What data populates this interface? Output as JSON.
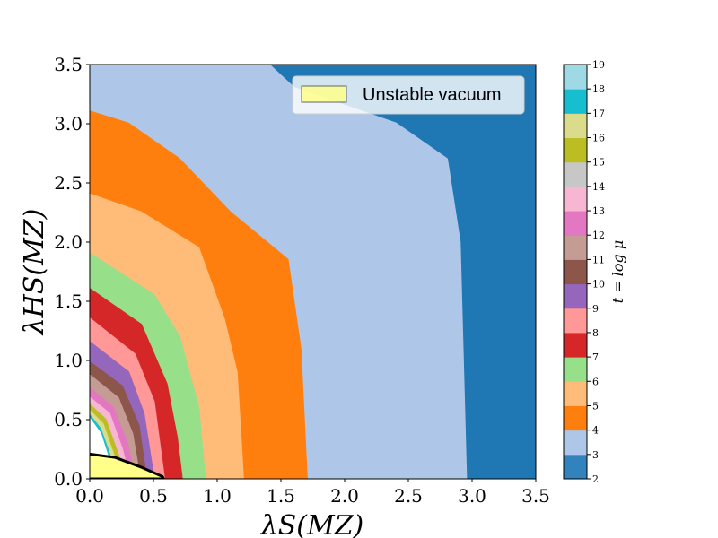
{
  "chart_data": {
    "type": "heatmap",
    "xlabel": "λS(MZ)",
    "ylabel": "λHS(MZ)",
    "xlim": [
      0,
      3.5
    ],
    "ylim": [
      0,
      3.5
    ],
    "x_ticks": [
      "0.0",
      "0.5",
      "1.0",
      "1.5",
      "2.0",
      "2.5",
      "3.0",
      "3.5"
    ],
    "y_ticks": [
      "0.0",
      "0.5",
      "1.0",
      "1.5",
      "2.0",
      "2.5",
      "3.0",
      "3.5"
    ],
    "colorbar": {
      "label": "t = log μ",
      "ticks": [
        "2",
        "3",
        "4",
        "5",
        "6",
        "7",
        "8",
        "9",
        "10",
        "11",
        "12",
        "13",
        "14",
        "15",
        "16",
        "17",
        "18",
        "19"
      ],
      "colors": [
        "#3182bd",
        "#aec7e8",
        "#ff7f0e",
        "#ffbb78",
        "#98df8a",
        "#d62728",
        "#ff9896",
        "#9467bd",
        "#8c564b",
        "#c49c94",
        "#e377c2",
        "#f7b6d2",
        "#c7c7c7",
        "#bcbd22",
        "#dbdb8d",
        "#17becf",
        "#9edae5"
      ]
    },
    "regions": [
      {
        "t": 3,
        "color": "#aec7e8",
        "boundary": [
          [
            0.0,
            3.5
          ],
          [
            1.4,
            3.5
          ],
          [
            1.6,
            3.3
          ],
          [
            2.4,
            3.0
          ],
          [
            2.8,
            2.7
          ],
          [
            2.9,
            2.0
          ],
          [
            2.95,
            0.0
          ]
        ]
      },
      {
        "t": 4,
        "color": "#ff7f0e",
        "boundary": [
          [
            0.0,
            3.1
          ],
          [
            0.3,
            3.0
          ],
          [
            0.7,
            2.7
          ],
          [
            1.1,
            2.25
          ],
          [
            1.55,
            1.85
          ],
          [
            1.65,
            1.1
          ],
          [
            1.7,
            0.0
          ]
        ]
      },
      {
        "t": 5,
        "color": "#ffbb78",
        "boundary": [
          [
            0.0,
            2.4
          ],
          [
            0.4,
            2.25
          ],
          [
            0.85,
            1.95
          ],
          [
            1.05,
            1.35
          ],
          [
            1.15,
            0.9
          ],
          [
            1.2,
            0.0
          ]
        ]
      },
      {
        "t": 6,
        "color": "#98df8a",
        "boundary": [
          [
            0.0,
            1.9
          ],
          [
            0.5,
            1.55
          ],
          [
            0.7,
            1.2
          ],
          [
            0.85,
            0.6
          ],
          [
            0.9,
            0.0
          ]
        ]
      },
      {
        "t": 7,
        "color": "#d62728",
        "boundary": [
          [
            0.0,
            1.6
          ],
          [
            0.4,
            1.3
          ],
          [
            0.6,
            0.8
          ],
          [
            0.68,
            0.35
          ],
          [
            0.72,
            0.0
          ]
        ]
      },
      {
        "t": 8,
        "color": "#ff9896",
        "boundary": [
          [
            0.0,
            1.35
          ],
          [
            0.35,
            1.05
          ],
          [
            0.5,
            0.65
          ],
          [
            0.58,
            0.0
          ]
        ]
      },
      {
        "t": 9,
        "color": "#9467bd",
        "boundary": [
          [
            0.0,
            1.15
          ],
          [
            0.3,
            0.9
          ],
          [
            0.42,
            0.55
          ],
          [
            0.5,
            0.0
          ]
        ]
      },
      {
        "t": 10,
        "color": "#8c564b",
        "boundary": [
          [
            0.0,
            0.98
          ],
          [
            0.25,
            0.78
          ],
          [
            0.38,
            0.45
          ],
          [
            0.44,
            0.0
          ]
        ]
      },
      {
        "t": 11,
        "color": "#c49c94",
        "boundary": [
          [
            0.0,
            0.87
          ],
          [
            0.22,
            0.68
          ],
          [
            0.33,
            0.38
          ],
          [
            0.39,
            0.0
          ]
        ]
      },
      {
        "t": 12,
        "color": "#e377c2",
        "boundary": [
          [
            0.0,
            0.76
          ],
          [
            0.18,
            0.6
          ],
          [
            0.29,
            0.3
          ],
          [
            0.35,
            0.0
          ]
        ]
      },
      {
        "t": 13,
        "color": "#f7b6d2",
        "boundary": [
          [
            0.0,
            0.68
          ],
          [
            0.15,
            0.55
          ],
          [
            0.25,
            0.25
          ],
          [
            0.31,
            0.0
          ]
        ]
      },
      {
        "t": 15,
        "color": "#bcbd22",
        "boundary": [
          [
            0.0,
            0.62
          ],
          [
            0.12,
            0.5
          ],
          [
            0.22,
            0.2
          ],
          [
            0.28,
            0.0
          ]
        ]
      },
      {
        "t": 16,
        "color": "#dbdb8d",
        "boundary": [
          [
            0.0,
            0.57
          ],
          [
            0.1,
            0.46
          ],
          [
            0.2,
            0.15
          ],
          [
            0.25,
            0.0
          ]
        ]
      },
      {
        "t": 17,
        "color": "#17becf",
        "boundary": [
          [
            0.0,
            0.53
          ],
          [
            0.08,
            0.42
          ],
          [
            0.17,
            0.15
          ],
          [
            0.22,
            0.0
          ]
        ]
      },
      {
        "t": null,
        "color": "#ffffff",
        "boundary": [
          [
            0.0,
            0.5
          ],
          [
            0.08,
            0.38
          ],
          [
            0.14,
            0.18
          ],
          [
            0.18,
            0.0
          ]
        ]
      }
    ],
    "unstable_vacuum": {
      "label": "Unstable vacuum",
      "color": "#ffff8a",
      "boundary": [
        [
          0.0,
          0.21
        ],
        [
          0.2,
          0.18
        ],
        [
          0.4,
          0.1
        ],
        [
          0.57,
          0.02
        ],
        [
          0.58,
          0.0
        ]
      ]
    },
    "legend": {
      "placement": "top-right",
      "entries": [
        "Unstable vacuum"
      ]
    }
  }
}
